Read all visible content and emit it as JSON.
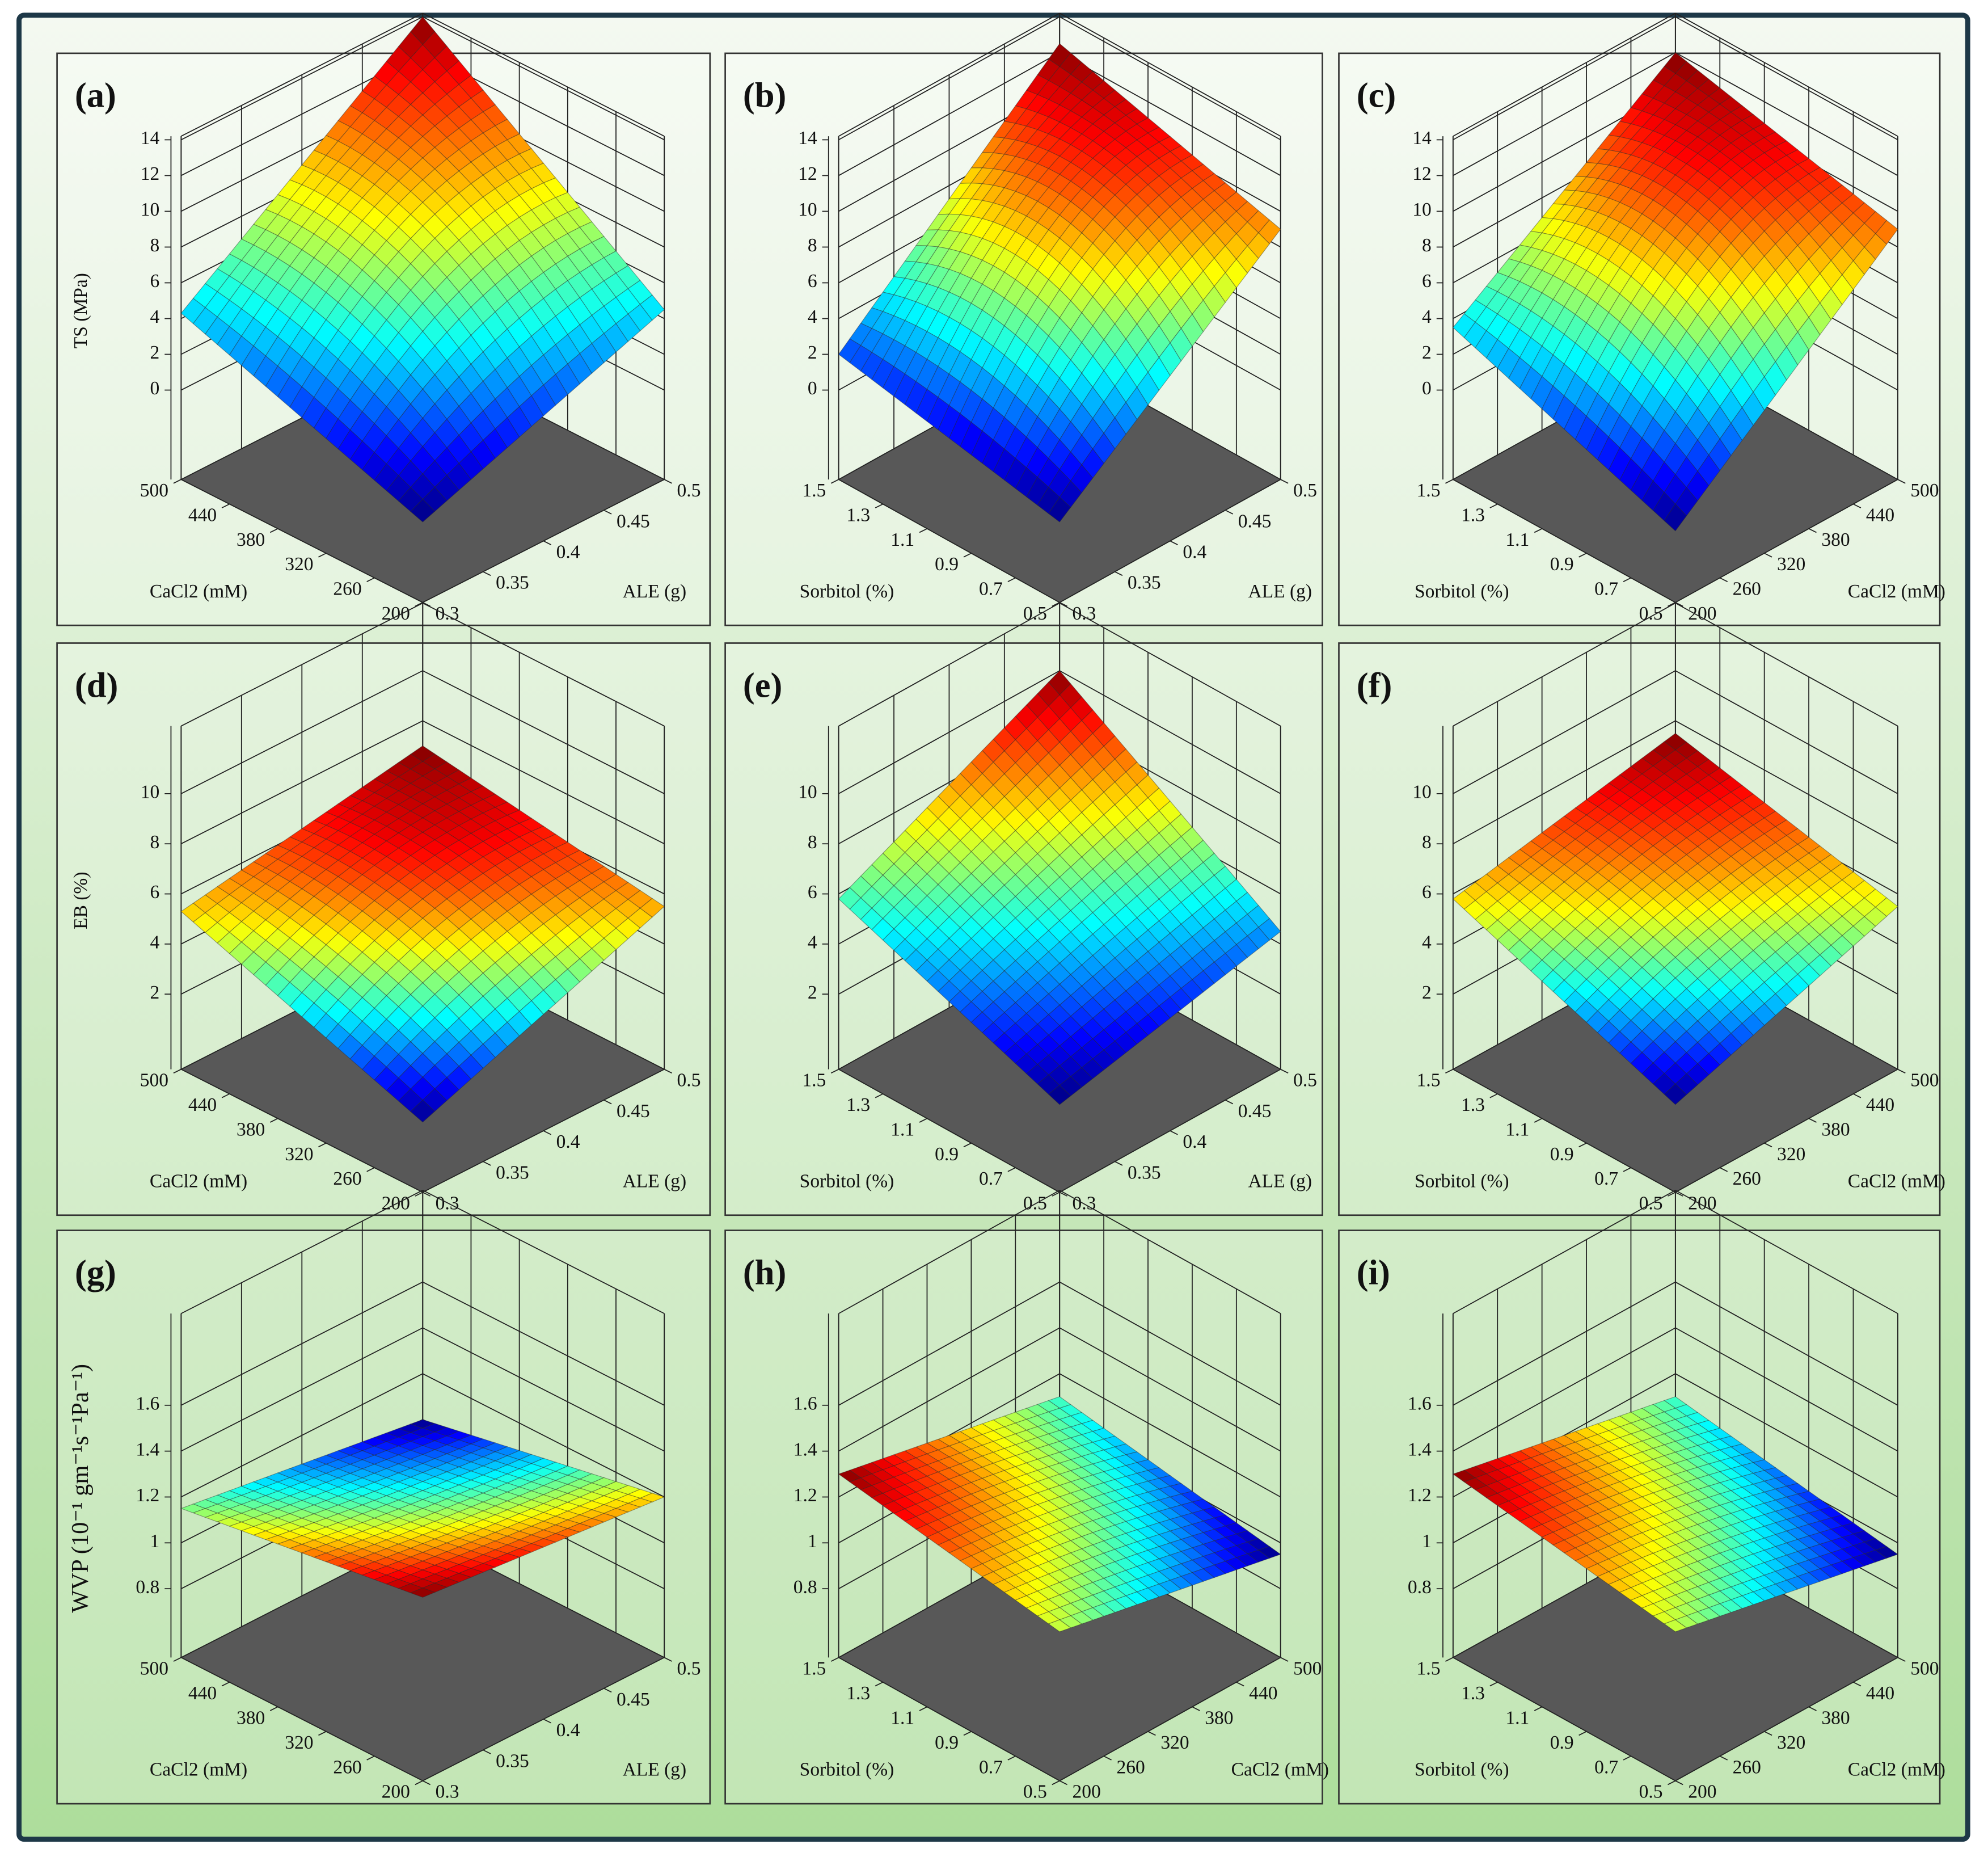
{
  "chart_data": [
    {
      "type": "surface",
      "label": "(a)",
      "zlabel": "TS (MPa)",
      "xlabel": "ALE (g)",
      "ylabel": "CaCl2 (mM)",
      "xticks": [
        0.3,
        0.35,
        0.4,
        0.45,
        0.5
      ],
      "yticks": [
        200,
        260,
        320,
        380,
        440,
        500
      ],
      "zticks": [
        0,
        2,
        4,
        6,
        8,
        10,
        12,
        14
      ],
      "xlim": [
        0.3,
        0.5
      ],
      "ylim": [
        200,
        500
      ],
      "zlim": [
        -5,
        14.2
      ],
      "z_corners": [
        -0.5,
        4.5,
        14,
        4.3
      ],
      "z_center": 7.8
    },
    {
      "type": "surface",
      "label": "(b)",
      "xlabel": "ALE (g)",
      "ylabel": "Sorbitol (%)",
      "xticks": [
        0.3,
        0.35,
        0.4,
        0.45,
        0.5
      ],
      "yticks": [
        0.5,
        0.7,
        0.9,
        1.1,
        1.3,
        1.5
      ],
      "zticks": [
        0,
        2,
        4,
        6,
        8,
        10,
        12,
        14
      ],
      "xlim": [
        0.3,
        0.5
      ],
      "ylim": [
        0.5,
        1.5
      ],
      "zlim": [
        -5,
        14.2
      ],
      "z_corners": [
        -0.5,
        9,
        12.5,
        2
      ],
      "z_center": 8.5
    },
    {
      "type": "surface",
      "label": "(c)",
      "xlabel": "CaCl2 (mM)",
      "ylabel": "Sorbitol (%)",
      "xticks": [
        200,
        260,
        320,
        380,
        440,
        500
      ],
      "yticks": [
        0.5,
        0.7,
        0.9,
        1.1,
        1.3,
        1.5
      ],
      "zticks": [
        0,
        2,
        4,
        6,
        8,
        10,
        12,
        14
      ],
      "xlim": [
        200,
        500
      ],
      "ylim": [
        0.5,
        1.5
      ],
      "zlim": [
        -5,
        14.2
      ],
      "z_corners": [
        -1,
        9,
        12,
        3.5
      ],
      "z_center": 8.5
    },
    {
      "type": "surface",
      "label": "(d)",
      "zlabel": "EB (%)",
      "xlabel": "ALE (g)",
      "ylabel": "CaCl2 (mM)",
      "xticks": [
        0.3,
        0.35,
        0.4,
        0.45,
        0.5
      ],
      "yticks": [
        200,
        260,
        320,
        380,
        440,
        500
      ],
      "zticks": [
        2,
        4,
        6,
        8,
        10
      ],
      "xlim": [
        0.3,
        0.5
      ],
      "ylim": [
        200,
        500
      ],
      "zlim": [
        -1,
        12.7
      ],
      "z_corners": [
        1.8,
        5.5,
        7,
        5.3
      ],
      "z_center": 5.8
    },
    {
      "type": "surface",
      "label": "(e)",
      "xlabel": "ALE (g)",
      "ylabel": "Sorbitol (%)",
      "xticks": [
        0.3,
        0.35,
        0.4,
        0.45,
        0.5
      ],
      "yticks": [
        0.5,
        0.7,
        0.9,
        1.1,
        1.3,
        1.5
      ],
      "zticks": [
        2,
        4,
        6,
        8,
        10
      ],
      "xlim": [
        0.3,
        0.5
      ],
      "ylim": [
        0.5,
        1.5
      ],
      "zlim": [
        -1,
        12.7
      ],
      "z_corners": [
        2.5,
        4.5,
        10,
        5.8
      ],
      "z_center": 5.8
    },
    {
      "type": "surface",
      "label": "(f)",
      "xlabel": "CaCl2 (mM)",
      "ylabel": "Sorbitol (%)",
      "xticks": [
        200,
        260,
        320,
        380,
        440,
        500
      ],
      "yticks": [
        0.5,
        0.7,
        0.9,
        1.1,
        1.3,
        1.5
      ],
      "zticks": [
        2,
        4,
        6,
        8,
        10
      ],
      "xlim": [
        200,
        500
      ],
      "ylim": [
        0.5,
        1.5
      ],
      "zlim": [
        -1,
        12.7
      ],
      "z_corners": [
        2.5,
        5.5,
        7.5,
        5.8
      ],
      "z_center": 5.8
    },
    {
      "type": "surface",
      "label": "(g)",
      "zlabel": "WVP (10⁻¹ gm⁻¹s⁻¹Pa⁻¹)",
      "xlabel": "ALE (g)",
      "ylabel": "CaCl2 (mM)",
      "xticks": [
        0.3,
        0.35,
        0.4,
        0.45,
        0.5
      ],
      "yticks": [
        200,
        260,
        320,
        380,
        440,
        500
      ],
      "zticks": [
        0.8,
        1,
        1.2,
        1.4,
        1.6
      ],
      "xlim": [
        0.3,
        0.5
      ],
      "ylim": [
        200,
        500
      ],
      "zlim": [
        0.5,
        2.0
      ],
      "z_corners": [
        1.3,
        1.2,
        1.0,
        1.15
      ],
      "z_center": 1.15
    },
    {
      "type": "surface",
      "label": "(h)",
      "xlabel": "CaCl2 (mM)",
      "ylabel": "Sorbitol (%)",
      "xticks": [
        200,
        260,
        320,
        380,
        440,
        500
      ],
      "yticks": [
        0.5,
        0.7,
        0.9,
        1.1,
        1.3,
        1.5
      ],
      "zticks": [
        0.8,
        1,
        1.2,
        1.4,
        1.6
      ],
      "xlim": [
        200,
        500
      ],
      "ylim": [
        0.5,
        1.5
      ],
      "zlim": [
        0.5,
        2.0
      ],
      "z_corners": [
        1.15,
        0.95,
        1.1,
        1.3
      ],
      "z_center": 1.15
    },
    {
      "type": "surface",
      "label": "(i)",
      "xlabel": "CaCl2 (mM)",
      "ylabel": "Sorbitol (%)",
      "xticks": [
        200,
        260,
        320,
        380,
        440,
        500
      ],
      "yticks": [
        0.5,
        0.7,
        0.9,
        1.1,
        1.3,
        1.5
      ],
      "zticks": [
        0.8,
        1,
        1.2,
        1.4,
        1.6
      ],
      "xlim": [
        200,
        500
      ],
      "ylim": [
        0.5,
        1.5
      ],
      "zlim": [
        0.5,
        2.0
      ],
      "z_corners": [
        1.15,
        0.95,
        1.1,
        1.3
      ],
      "z_center": 1.15
    }
  ]
}
